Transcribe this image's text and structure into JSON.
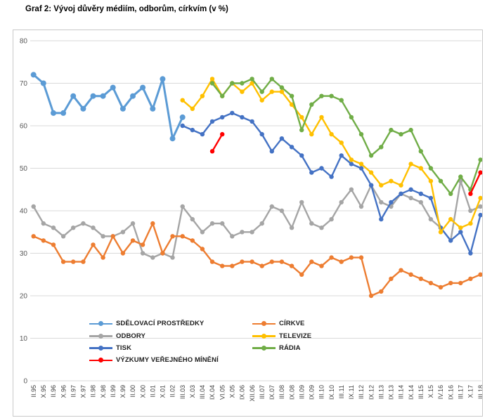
{
  "title": "Graf 2: Vývoj důvěry médiím, odborům, církvím (v %)",
  "legend": {
    "column1": [
      "SDĚLOVACÍ PROSTŘEDKY",
      "ODBORY",
      "TISK",
      "VÝZKUMY VEŘEJNÉHO MÍNĚNÍ"
    ],
    "column2": [
      "CÍRKVE",
      "TELEVIZE",
      "RÁDIA"
    ]
  },
  "chart_data": {
    "type": "line",
    "title": "Graf 2: Vývoj důvěry médiím, odborům, církvím (v %)",
    "xlabel": "",
    "ylabel": "",
    "ylim": [
      0,
      80
    ],
    "yticks": [
      0,
      10,
      20,
      30,
      40,
      50,
      60,
      70,
      80
    ],
    "grid": true,
    "legend_position": "inside-bottom-two-columns",
    "categories": [
      "II.95",
      "X.95",
      "II.96",
      "X.96",
      "II.97",
      "X.97",
      "II.98",
      "X.98",
      "II.99",
      "X.99",
      "II.00",
      "X.00",
      "II.01",
      "X.01",
      "II.02",
      "III.03",
      "X.03",
      "III.04",
      "IX.04",
      "VI.05",
      "X.05",
      "IX.06",
      "XII.06",
      "III.07",
      "IX.07",
      "III.08",
      "IX.08",
      "III.09",
      "IX.09",
      "III.10",
      "IX.10",
      "III.11",
      "IX.11",
      "III.12",
      "IX.12",
      "III.13",
      "IX.13",
      "III.14",
      "IX.14",
      "III.15",
      "X.15",
      "IV.16",
      "IX.16",
      "III.17",
      "X.17",
      "III.18"
    ],
    "series": [
      {
        "name": "SDĚLOVACÍ PROSTŘEDKY",
        "color": "#5B9BD5",
        "segments": [
          {
            "start": 0,
            "values": [
              72,
              70,
              63,
              63,
              67,
              64,
              67,
              67,
              69,
              64,
              67,
              69,
              64,
              71,
              57,
              62
            ]
          }
        ]
      },
      {
        "name": "ODBORY",
        "color": "#A5A5A5",
        "segments": [
          {
            "start": 0,
            "values": [
              41,
              37,
              36,
              34,
              36,
              37,
              36,
              34,
              34,
              35,
              37,
              30,
              29,
              30,
              29,
              41,
              38,
              35,
              37,
              37,
              34,
              35,
              35,
              37,
              41,
              40,
              36,
              42,
              37,
              36,
              38,
              42,
              45,
              41,
              46,
              42,
              41,
              44,
              43,
              42,
              38,
              36,
              33,
              47,
              40,
              41
            ]
          }
        ]
      },
      {
        "name": "TISK",
        "color": "#4472C4",
        "segments": [
          {
            "start": 15,
            "values": [
              60,
              59,
              58,
              61,
              62,
              63,
              62,
              61,
              58,
              54,
              57,
              55,
              53,
              49,
              50,
              48,
              53,
              51,
              50,
              46,
              38,
              42,
              44,
              45,
              44,
              43,
              36,
              33,
              35,
              30,
              39
            ]
          }
        ]
      },
      {
        "name": "VÝZKUMY VEŘEJNÉHO MÍNĚNÍ",
        "color": "#FF0000",
        "segments": [
          {
            "start": 18,
            "values": [
              54,
              58
            ]
          },
          {
            "start": 44,
            "values": [
              44,
              49
            ]
          }
        ]
      },
      {
        "name": "CÍRKVE",
        "color": "#ED7D31",
        "segments": [
          {
            "start": 0,
            "values": [
              34,
              33,
              32,
              28,
              28,
              28,
              32,
              29,
              34,
              30,
              33,
              32,
              37,
              30,
              34,
              34,
              33,
              31,
              28,
              27,
              27,
              28,
              28,
              27,
              28,
              28,
              27,
              25,
              28,
              27,
              29,
              28,
              29,
              29,
              20,
              21,
              24,
              26,
              25,
              24,
              23,
              22,
              23,
              23,
              24,
              25
            ]
          }
        ]
      },
      {
        "name": "TELEVIZE",
        "color": "#FFC000",
        "segments": [
          {
            "start": 15,
            "values": [
              66,
              64,
              67,
              71,
              67,
              70,
              68,
              70,
              66,
              68,
              68,
              65,
              62,
              58,
              62,
              58,
              56,
              52,
              51,
              49,
              46,
              47,
              46,
              51,
              50,
              47,
              35,
              38,
              36,
              37,
              43
            ]
          }
        ]
      },
      {
        "name": "RÁDIA",
        "color": "#70AD47",
        "segments": [
          {
            "start": 18,
            "values": [
              70,
              67,
              70,
              70,
              71,
              68,
              71,
              69,
              67,
              59,
              65,
              67,
              67,
              66,
              62,
              58,
              53,
              55,
              59,
              58,
              59,
              54,
              50,
              47,
              44,
              48,
              45,
              52
            ]
          }
        ]
      }
    ]
  }
}
